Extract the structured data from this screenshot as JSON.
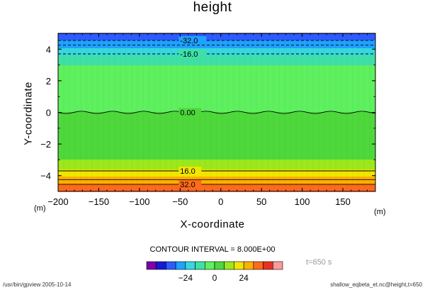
{
  "title": "height",
  "colors": {
    "fills": [
      "#7b00a8",
      "#1818d8",
      "#2d5cff",
      "#1fa2ff",
      "#36d8e0",
      "#3fe0a8",
      "#5ef05e",
      "#4ed83c",
      "#9be81c",
      "#f0e600",
      "#ffb000",
      "#ff6a1a",
      "#e83020",
      "#ff9a9a"
    ]
  },
  "chart_data": {
    "type": "contour",
    "title": "height",
    "xlabel": "X-coordinate",
    "ylabel": "Y-coordinate",
    "x_unit": "(m)",
    "y_unit": "(m)",
    "xlim": [
      -200,
      190
    ],
    "ylim": [
      -5,
      5
    ],
    "x_ticks": [
      -200,
      -150,
      -100,
      -50,
      0,
      50,
      100,
      150
    ],
    "y_ticks": [
      -4,
      -2,
      0,
      2,
      4
    ],
    "contour_interval": 8.0,
    "levels": [
      -48,
      -40,
      -32,
      -24,
      -16,
      -8,
      0,
      8,
      16,
      24,
      32,
      40,
      48
    ],
    "field_profile": [
      {
        "y": -5.0,
        "value": 43
      },
      {
        "y": -4.9,
        "value": 38
      },
      {
        "y": -4.6,
        "value": 33
      },
      {
        "y": -4.0,
        "value": 23
      },
      {
        "y": -3.5,
        "value": 14
      },
      {
        "y": -3.0,
        "value": 8
      },
      {
        "y": -2.0,
        "value": 2
      },
      {
        "y": 0.0,
        "value": 0
      },
      {
        "y": 2.0,
        "value": -2
      },
      {
        "y": 3.0,
        "value": -8
      },
      {
        "y": 3.5,
        "value": -14
      },
      {
        "y": 4.0,
        "value": -23
      },
      {
        "y": 4.6,
        "value": -33
      },
      {
        "y": 4.9,
        "value": -38
      },
      {
        "y": 5.0,
        "value": -43
      }
    ],
    "contour_lines": [
      {
        "value": -32,
        "y": 4.55,
        "label": "-32.0",
        "label_x": -50,
        "dashed": true
      },
      {
        "value": -24,
        "y": 4.25,
        "dashed": true
      },
      {
        "value": -16,
        "y": 3.7,
        "label": "-16.0",
        "label_x": -50,
        "dashed": true
      },
      {
        "value": 0,
        "y": 0.0,
        "label": "0.00",
        "label_x": -50,
        "wavy": true
      },
      {
        "value": 16,
        "y": -3.7,
        "label": "16.0",
        "label_x": -50
      },
      {
        "value": 24,
        "y": -4.25
      },
      {
        "value": 32,
        "y": -4.55,
        "label": "32.0",
        "label_x": -50
      }
    ],
    "colorbar": {
      "ticks": [
        -24,
        0,
        24
      ],
      "tick_labels": [
        "−24",
        "0",
        "24"
      ]
    }
  },
  "labels": {
    "xlabel": "X-coordinate",
    "ylabel": "Y-coordinate",
    "x_unit_left": "(m)",
    "x_unit_right": "(m)",
    "interval": "CONTOUR INTERVAL = 8.000E+00",
    "time": "t=650 s",
    "footer_left": "/usr/bin/gpview  2005-10-14",
    "footer_right": "shallow_eqbeta_et.nc@height,t=650"
  }
}
